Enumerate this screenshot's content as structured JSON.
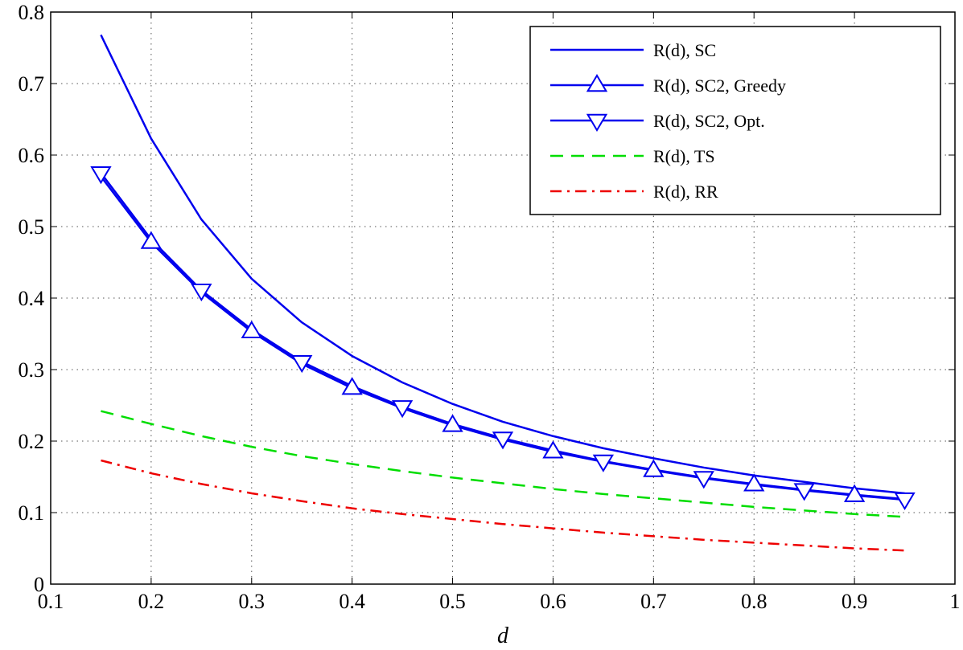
{
  "chart_data": {
    "type": "line",
    "title": "",
    "xlabel": "d",
    "ylabel": "",
    "xlim": [
      0.1,
      1
    ],
    "ylim": [
      0,
      0.8
    ],
    "xticks": [
      "0.1",
      "0.2",
      "0.3",
      "0.4",
      "0.5",
      "0.6",
      "0.7",
      "0.8",
      "0.9",
      "1"
    ],
    "yticks": [
      "0",
      "0.1",
      "0.2",
      "0.3",
      "0.4",
      "0.5",
      "0.6",
      "0.7",
      "0.8"
    ],
    "grid": true,
    "legend_position": "top-right",
    "x": [
      0.15,
      0.2,
      0.25,
      0.3,
      0.35,
      0.4,
      0.45,
      0.5,
      0.55,
      0.6,
      0.65,
      0.7,
      0.75,
      0.8,
      0.85,
      0.9,
      0.95
    ],
    "series": [
      {
        "name": "R(d), SC",
        "color": "#0000ee",
        "style": "solid",
        "marker": "none",
        "values": [
          0.768,
          0.623,
          0.51,
          0.427,
          0.366,
          0.319,
          0.282,
          0.252,
          0.227,
          0.207,
          0.19,
          0.176,
          0.163,
          0.152,
          0.143,
          0.134,
          0.127
        ]
      },
      {
        "name": "R(d), SC2, Greedy",
        "color": "#0000ee",
        "style": "solid",
        "marker": "triangle-up",
        "values": [
          0.57,
          0.478,
          0.408,
          0.353,
          0.308,
          0.274,
          0.246,
          0.222,
          0.202,
          0.185,
          0.171,
          0.159,
          0.148,
          0.139,
          0.131,
          0.124,
          0.118
        ]
      },
      {
        "name": "R(d), SC2, Opt.",
        "color": "#0000ee",
        "style": "solid",
        "marker": "triangle-down",
        "values": [
          0.575,
          0.482,
          0.411,
          0.356,
          0.311,
          0.277,
          0.248,
          0.224,
          0.204,
          0.187,
          0.172,
          0.16,
          0.149,
          0.14,
          0.132,
          0.125,
          0.119
        ]
      },
      {
        "name": "R(d), TS",
        "color": "#00dd00",
        "style": "dashed",
        "marker": "none",
        "values": [
          0.242,
          0.224,
          0.207,
          0.192,
          0.179,
          0.168,
          0.158,
          0.149,
          0.141,
          0.133,
          0.126,
          0.12,
          0.114,
          0.108,
          0.103,
          0.098,
          0.094
        ]
      },
      {
        "name": "R(d), RR",
        "color": "#ee0000",
        "style": "dashdot",
        "marker": "none",
        "values": [
          0.173,
          0.155,
          0.14,
          0.127,
          0.116,
          0.106,
          0.098,
          0.091,
          0.084,
          0.078,
          0.072,
          0.067,
          0.062,
          0.058,
          0.054,
          0.05,
          0.047
        ]
      }
    ]
  }
}
